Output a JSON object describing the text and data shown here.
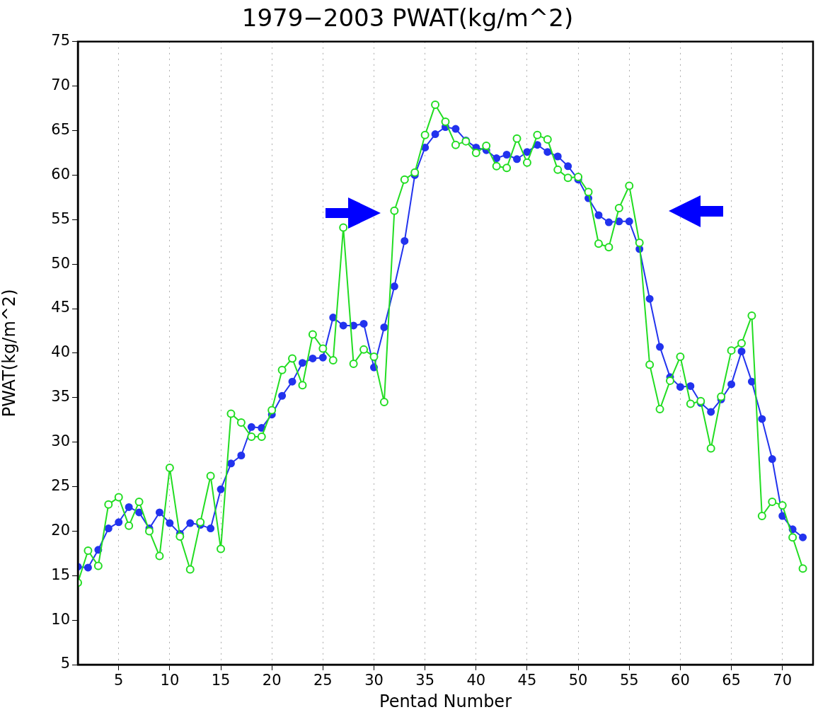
{
  "chart_data": {
    "type": "line",
    "title": "1979−2003 PWAT(kg/m^2)",
    "xlabel": "Pentad Number",
    "ylabel": "PWAT(kg/m^2)",
    "x": [
      1,
      2,
      3,
      4,
      5,
      6,
      7,
      8,
      9,
      10,
      11,
      12,
      13,
      14,
      15,
      16,
      17,
      18,
      19,
      20,
      21,
      22,
      23,
      24,
      25,
      26,
      27,
      28,
      29,
      30,
      31,
      32,
      33,
      34,
      35,
      36,
      37,
      38,
      39,
      40,
      41,
      42,
      43,
      44,
      45,
      46,
      47,
      48,
      49,
      50,
      51,
      52,
      53,
      54,
      55,
      56,
      57,
      58,
      59,
      60,
      61,
      62,
      63,
      64,
      65,
      66,
      67,
      68,
      69,
      70,
      71,
      72
    ],
    "series": [
      {
        "color": "#22dd22",
        "values": [
          14.2,
          17.8,
          16.1,
          23.0,
          23.8,
          20.6,
          23.3,
          20.0,
          17.2,
          27.1,
          19.4,
          15.7,
          21.0,
          26.2,
          18.0,
          33.2,
          32.2,
          30.6,
          30.6,
          33.6,
          38.1,
          39.4,
          36.4,
          42.1,
          40.5,
          39.2,
          54.1,
          38.8,
          40.4,
          39.6,
          34.5,
          56.0,
          59.5,
          60.3,
          64.5,
          67.9,
          66.0,
          63.4,
          63.8,
          62.5,
          63.3,
          61.0,
          60.8,
          64.1,
          61.4,
          64.5,
          64.0,
          60.6,
          59.7,
          59.8,
          58.1,
          52.3,
          51.9,
          56.3,
          58.8,
          52.4,
          38.7,
          33.7,
          36.9,
          39.6,
          34.3,
          34.6,
          29.3,
          35.1,
          40.3,
          41.1,
          44.2,
          21.7,
          23.3,
          22.9,
          19.3,
          15.8
        ]
      },
      {
        "color": "#2233ee",
        "values": [
          16.0,
          15.9,
          17.9,
          20.3,
          21.0,
          22.7,
          22.1,
          20.3,
          22.1,
          20.9,
          19.7,
          20.9,
          20.7,
          20.3,
          24.7,
          27.6,
          28.5,
          31.7,
          31.6,
          33.1,
          35.2,
          36.8,
          38.9,
          39.4,
          39.5,
          44.0,
          43.1,
          43.1,
          43.3,
          38.4,
          42.9,
          47.5,
          52.6,
          60.0,
          63.1,
          64.6,
          65.4,
          65.2,
          63.9,
          63.1,
          62.8,
          61.9,
          62.3,
          61.8,
          62.6,
          63.4,
          62.6,
          62.1,
          61.0,
          59.5,
          57.4,
          55.5,
          54.7,
          54.8,
          54.8,
          51.7,
          46.1,
          40.7,
          37.3,
          36.2,
          36.3,
          34.4,
          33.4,
          34.8,
          36.5,
          40.2,
          36.8,
          32.6,
          28.1,
          21.7,
          20.2,
          19.3
        ]
      }
    ],
    "xlim": [
      1,
      73
    ],
    "xticks": [
      5,
      10,
      15,
      20,
      25,
      30,
      35,
      40,
      45,
      50,
      55,
      60,
      65,
      70
    ],
    "ylim": [
      5,
      75
    ],
    "yticks": [
      5,
      10,
      15,
      20,
      25,
      30,
      35,
      40,
      45,
      50,
      55,
      60,
      65,
      70,
      75
    ],
    "grid": "x",
    "legend": false,
    "marker": "circle",
    "line_style": "solid"
  }
}
